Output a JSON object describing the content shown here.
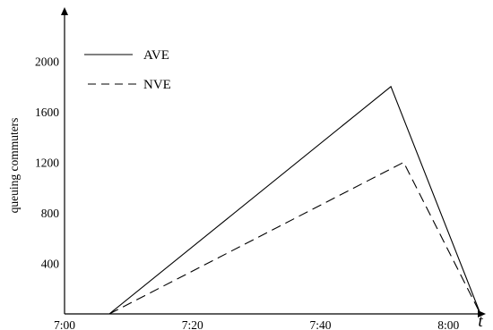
{
  "chart_data": {
    "type": "line",
    "title": "",
    "xlabel": "t",
    "ylabel": "queuing commuters",
    "x_ticks": [
      "7:00",
      "7:20",
      "7:40",
      "8:00"
    ],
    "y_ticks": [
      400,
      800,
      1200,
      1600,
      2000
    ],
    "x_range_minutes": [
      0,
      65
    ],
    "ylim": [
      0,
      2400
    ],
    "grid": false,
    "legend": "top-left",
    "series": [
      {
        "name": "AVE",
        "style": "solid",
        "color": "#000000",
        "points": [
          {
            "x": "7:07",
            "y": 0
          },
          {
            "x": "7:51",
            "y": 1800
          },
          {
            "x": "8:05",
            "y": 0
          }
        ]
      },
      {
        "name": "NVE",
        "style": "dashed",
        "color": "#000000",
        "points": [
          {
            "x": "7:07",
            "y": 0
          },
          {
            "x": "7:53",
            "y": 1200
          },
          {
            "x": "8:05",
            "y": 0
          }
        ]
      }
    ]
  }
}
